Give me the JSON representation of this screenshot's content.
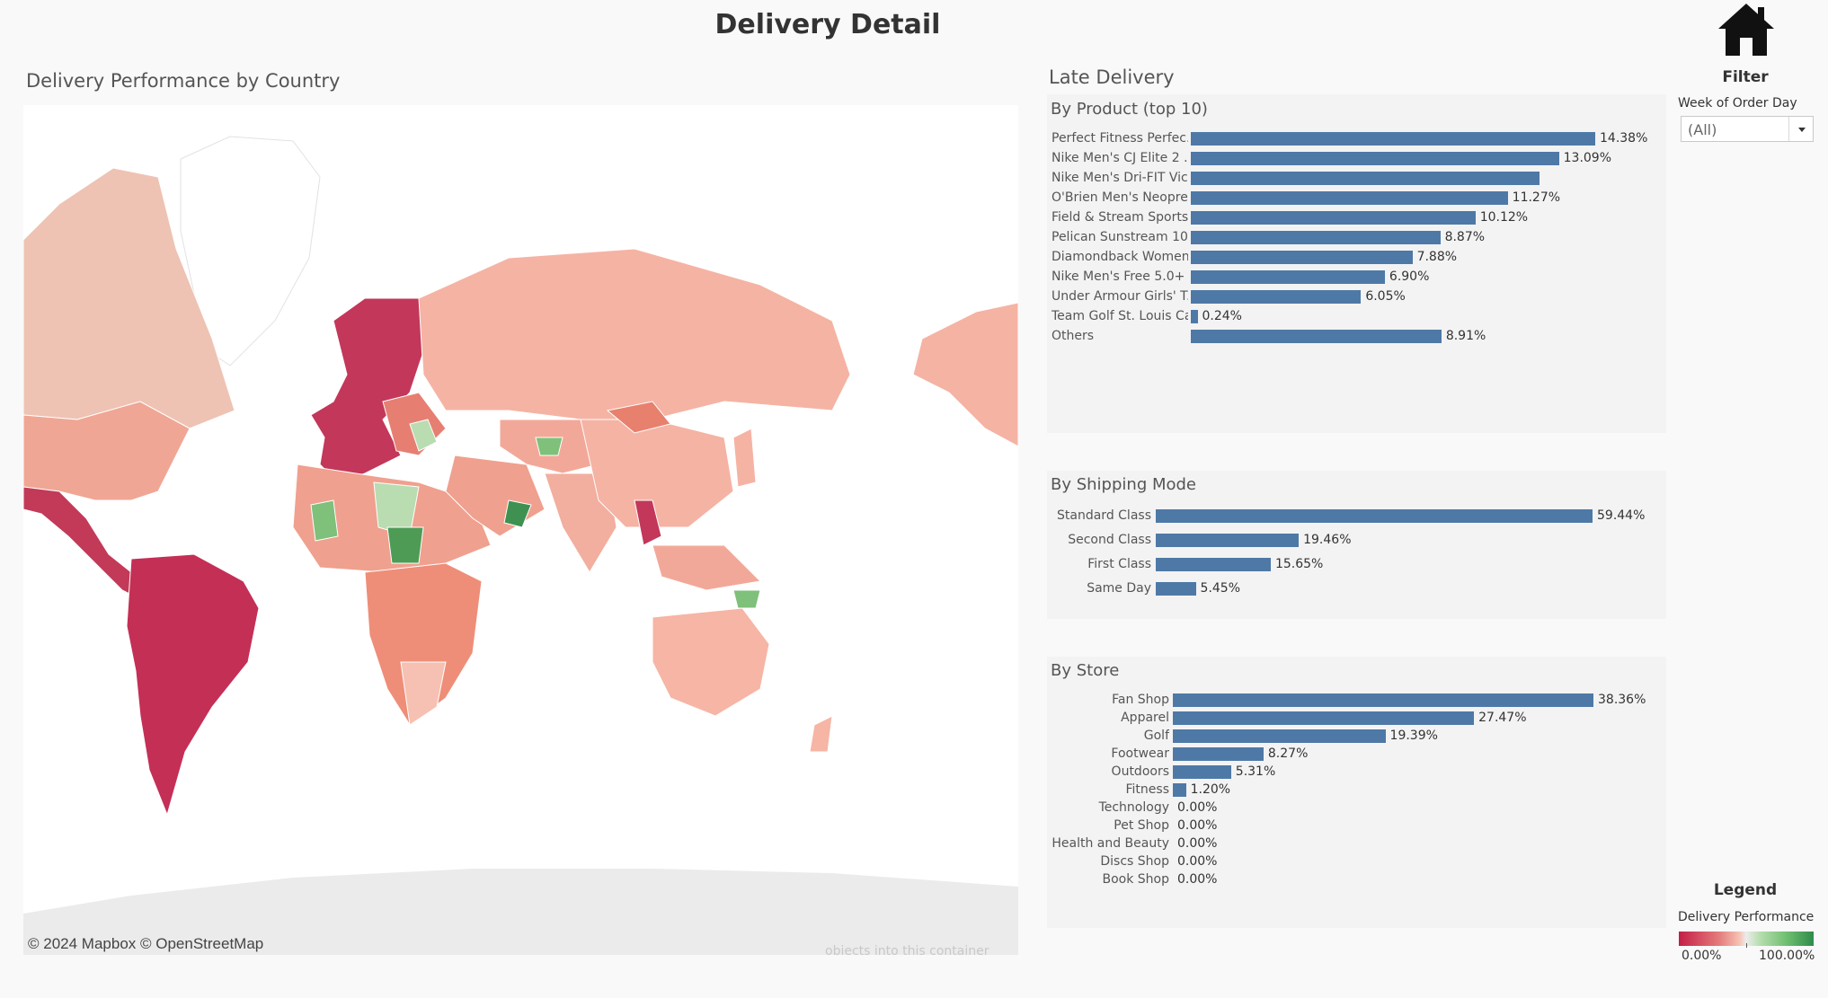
{
  "title": "Delivery Detail",
  "map": {
    "title": "Delivery Performance by Country",
    "attribution": "© 2024 Mapbox © OpenStreetMap",
    "ghost_text": "objects into this container"
  },
  "late_delivery": {
    "title": "Late Delivery",
    "by_product": {
      "title": "By Product (top 10)",
      "items": [
        {
          "label": "Perfect Fitness Perfec..",
          "value": 14.38,
          "display": "14.38%"
        },
        {
          "label": "Nike Men's CJ Elite 2 ..",
          "value": 13.09,
          "display": "13.09%"
        },
        {
          "label": "Nike Men's Dri-FIT Vic..",
          "value": 12.4,
          "display": ""
        },
        {
          "label": "O'Brien Men's Neopre..",
          "value": 11.27,
          "display": "11.27%"
        },
        {
          "label": "Field & Stream Sports..",
          "value": 10.12,
          "display": "10.12%"
        },
        {
          "label": "Pelican Sunstream 10..",
          "value": 8.87,
          "display": "8.87%"
        },
        {
          "label": "Diamondback Women..",
          "value": 7.88,
          "display": "7.88%"
        },
        {
          "label": "Nike Men's Free 5.0+ ..",
          "value": 6.9,
          "display": "6.90%"
        },
        {
          "label": "Under Armour Girls' T..",
          "value": 6.05,
          "display": "6.05%"
        },
        {
          "label": "Team Golf St. Louis Ca..",
          "value": 0.24,
          "display": "0.24%"
        },
        {
          "label": "Others",
          "value": 8.91,
          "display": "8.91%"
        }
      ]
    },
    "by_shipping_mode": {
      "title": "By Shipping Mode",
      "items": [
        {
          "label": "Standard Class",
          "value": 59.44,
          "display": "59.44%"
        },
        {
          "label": "Second Class",
          "value": 19.46,
          "display": "19.46%"
        },
        {
          "label": "First Class",
          "value": 15.65,
          "display": "15.65%"
        },
        {
          "label": "Same Day",
          "value": 5.45,
          "display": "5.45%"
        }
      ]
    },
    "by_store": {
      "title": "By Store",
      "items": [
        {
          "label": "Fan Shop",
          "value": 38.36,
          "display": "38.36%"
        },
        {
          "label": "Apparel",
          "value": 27.47,
          "display": "27.47%"
        },
        {
          "label": "Golf",
          "value": 19.39,
          "display": "19.39%"
        },
        {
          "label": "Footwear",
          "value": 8.27,
          "display": "8.27%"
        },
        {
          "label": "Outdoors",
          "value": 5.31,
          "display": "5.31%"
        },
        {
          "label": "Fitness",
          "value": 1.2,
          "display": "1.20%"
        },
        {
          "label": "Technology",
          "value": 0,
          "display": "0.00%"
        },
        {
          "label": "Pet Shop",
          "value": 0,
          "display": "0.00%"
        },
        {
          "label": "Health and Beauty",
          "value": 0,
          "display": "0.00%"
        },
        {
          "label": "Discs Shop",
          "value": 0,
          "display": "0.00%"
        },
        {
          "label": "Book Shop",
          "value": 0,
          "display": "0.00%"
        }
      ]
    }
  },
  "filter": {
    "title": "Filter",
    "label": "Week of Order Day",
    "value": "(All)"
  },
  "legend": {
    "title": "Legend",
    "label": "Delivery Performance",
    "min": "0.00%",
    "max": "100.00%"
  },
  "colors": {
    "bar": "#4e79a7",
    "poor": "#c41e46",
    "good": "#2e8b4b"
  },
  "chart_data": [
    {
      "type": "bar",
      "title": "By Product (top 10)",
      "categories": [
        "Perfect Fitness Perfec..",
        "Nike Men's CJ Elite 2 ..",
        "Nike Men's Dri-FIT Vic..",
        "O'Brien Men's Neopre..",
        "Field & Stream Sports..",
        "Pelican Sunstream 10..",
        "Diamondback Women..",
        "Nike Men's Free 5.0+ ..",
        "Under Armour Girls' T..",
        "Team Golf St. Louis Ca..",
        "Others"
      ],
      "values": [
        14.38,
        13.09,
        12.4,
        11.27,
        10.12,
        8.87,
        7.88,
        6.9,
        6.05,
        0.24,
        8.91
      ]
    },
    {
      "type": "bar",
      "title": "By Shipping Mode",
      "categories": [
        "Standard Class",
        "Second Class",
        "First Class",
        "Same Day"
      ],
      "values": [
        59.44,
        19.46,
        15.65,
        5.45
      ]
    },
    {
      "type": "bar",
      "title": "By Store",
      "categories": [
        "Fan Shop",
        "Apparel",
        "Golf",
        "Footwear",
        "Outdoors",
        "Fitness",
        "Technology",
        "Pet Shop",
        "Health and Beauty",
        "Discs Shop",
        "Book Shop"
      ],
      "values": [
        38.36,
        27.47,
        19.39,
        8.27,
        5.31,
        1.2,
        0,
        0,
        0,
        0,
        0
      ]
    }
  ]
}
